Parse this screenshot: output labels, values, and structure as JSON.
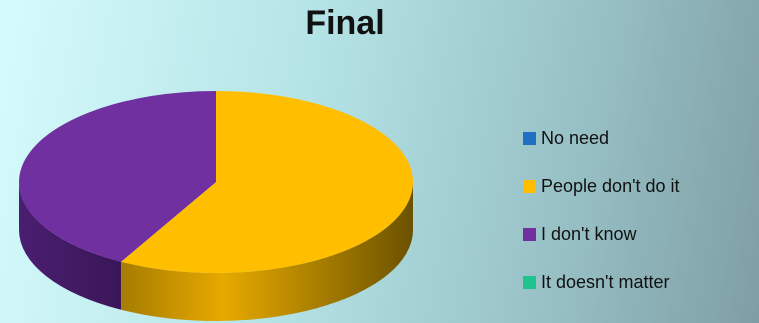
{
  "chart_data": {
    "type": "pie",
    "title": "Final",
    "three_d": true,
    "legend_placement": "right",
    "slices": [
      {
        "label": "No need",
        "value": 0,
        "color": "#1f6fc5"
      },
      {
        "label": "People don't do it",
        "value": 58,
        "color": "#ffbf00"
      },
      {
        "label": "I don't know",
        "value": 42,
        "color": "#7030a0"
      },
      {
        "label": "It doesn't matter",
        "value": 0,
        "color": "#1fc48c"
      }
    ]
  }
}
